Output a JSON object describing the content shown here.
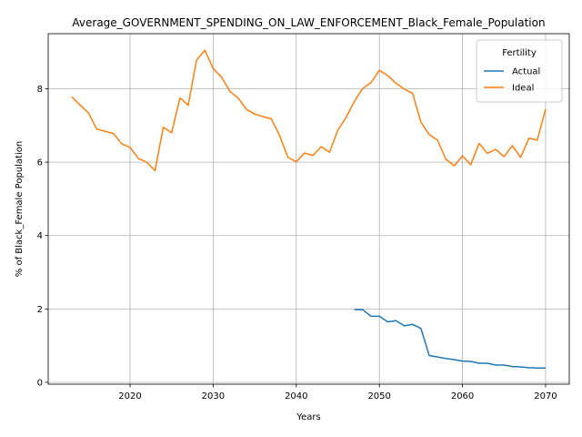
{
  "chart_data": {
    "type": "line",
    "title": "Average_GOVERNMENT_SPENDING_ON_LAW_ENFORCEMENT_Black_Female_Population",
    "xlabel": "Years",
    "ylabel": "% of Black_Female Population",
    "xlim": [
      2010.15,
      2072.85
    ],
    "ylim": [
      -0.05,
      9.5
    ],
    "xticks": [
      2020,
      2030,
      2040,
      2050,
      2060,
      2070
    ],
    "yticks": [
      0,
      2,
      4,
      6,
      8
    ],
    "grid": true,
    "legend": {
      "title": "Fertility",
      "placement": "top-right"
    },
    "series": [
      {
        "name": "Actual",
        "color": "#1f77b4",
        "x": [
          2047,
          2048,
          2049,
          2050,
          2051,
          2052,
          2053,
          2054,
          2055,
          2056,
          2057,
          2058,
          2059,
          2060,
          2061,
          2062,
          2063,
          2064,
          2065,
          2066,
          2067,
          2068,
          2069,
          2070
        ],
        "values": [
          1.98,
          1.98,
          1.8,
          1.8,
          1.65,
          1.68,
          1.54,
          1.58,
          1.47,
          0.73,
          0.69,
          0.65,
          0.62,
          0.58,
          0.57,
          0.52,
          0.52,
          0.47,
          0.47,
          0.43,
          0.42,
          0.4,
          0.39,
          0.39
        ]
      },
      {
        "name": "Ideal",
        "color": "#ff7f0e",
        "x": [
          2013,
          2014,
          2015,
          2016,
          2017,
          2018,
          2019,
          2020,
          2021,
          2022,
          2023,
          2024,
          2025,
          2026,
          2027,
          2028,
          2029,
          2030,
          2031,
          2032,
          2033,
          2034,
          2035,
          2036,
          2037,
          2038,
          2039,
          2040,
          2041,
          2042,
          2043,
          2044,
          2045,
          2046,
          2047,
          2048,
          2049,
          2050,
          2051,
          2052,
          2053,
          2054,
          2055,
          2056,
          2057,
          2058,
          2059,
          2060,
          2061,
          2062,
          2063,
          2064,
          2065,
          2066,
          2067,
          2068,
          2069,
          2070
        ],
        "values": [
          7.78,
          7.55,
          7.34,
          6.9,
          6.84,
          6.78,
          6.5,
          6.4,
          6.1,
          6.0,
          5.77,
          6.95,
          6.8,
          7.75,
          7.55,
          8.78,
          9.05,
          8.55,
          8.32,
          7.93,
          7.75,
          7.44,
          7.31,
          7.24,
          7.18,
          6.72,
          6.13,
          6.01,
          6.25,
          6.18,
          6.42,
          6.27,
          6.87,
          7.22,
          7.66,
          8.01,
          8.17,
          8.5,
          8.36,
          8.15,
          7.99,
          7.87,
          7.09,
          6.75,
          6.6,
          6.08,
          5.9,
          6.17,
          5.93,
          6.51,
          6.24,
          6.35,
          6.15,
          6.45,
          6.13,
          6.65,
          6.6,
          7.44
        ]
      }
    ]
  }
}
